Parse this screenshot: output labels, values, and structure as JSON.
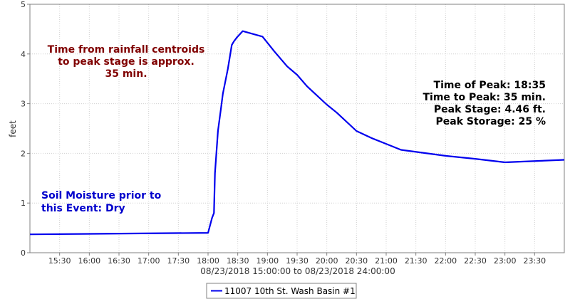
{
  "chart_data": {
    "type": "line",
    "ylabel": "feet",
    "xlabel": "08/23/2018 15:00:00 to 08/23/2018 24:00:00",
    "ylim": [
      0,
      5
    ],
    "xlim": [
      "15:00",
      "24:00"
    ],
    "x_ticks": [
      "15:30",
      "16:00",
      "16:30",
      "17:00",
      "17:30",
      "18:00",
      "18:30",
      "19:00",
      "19:30",
      "20:00",
      "20:30",
      "21:00",
      "21:30",
      "22:00",
      "22:30",
      "23:00",
      "23:30"
    ],
    "y_ticks": [
      "0",
      "1",
      "2",
      "3",
      "4",
      "5"
    ],
    "grid": true,
    "legend_position": "bottom-center",
    "series": [
      {
        "name": "11007 10th St. Wash Basin #1",
        "color": "#0000ee",
        "x": [
          "15:00",
          "18:00",
          "18:04",
          "18:06",
          "18:07",
          "18:10",
          "18:12",
          "18:13",
          "18:15",
          "18:17",
          "18:18",
          "18:20",
          "18:24",
          "18:26",
          "18:29",
          "18:35",
          "18:55",
          "19:07",
          "19:20",
          "19:30",
          "19:40",
          "20:00",
          "20:10",
          "20:30",
          "20:45",
          "21:00",
          "21:15",
          "22:00",
          "22:30",
          "23:00",
          "24:00"
        ],
        "y": [
          0.37,
          0.4,
          0.7,
          0.8,
          1.6,
          2.45,
          2.75,
          2.9,
          3.2,
          3.4,
          3.5,
          3.7,
          4.18,
          4.25,
          4.33,
          4.46,
          4.35,
          4.05,
          3.75,
          3.58,
          3.35,
          2.98,
          2.82,
          2.45,
          2.31,
          2.19,
          2.07,
          1.95,
          1.89,
          1.82,
          1.87
        ]
      }
    ],
    "annotations": [
      {
        "lines": [
          "Time from rainfall centroids",
          "to peak stage is approx.",
          "35 min."
        ],
        "color": "#800000"
      },
      {
        "lines": [
          "Time of Peak: 18:35",
          "Time to Peak: 35 min.",
          "Peak Stage: 4.46 ft.",
          "Peak Storage: 25 %"
        ],
        "color": "#000000"
      },
      {
        "lines": [
          "Soil Moisture prior to",
          "this Event: Dry"
        ],
        "color": "#0000cc"
      }
    ]
  }
}
